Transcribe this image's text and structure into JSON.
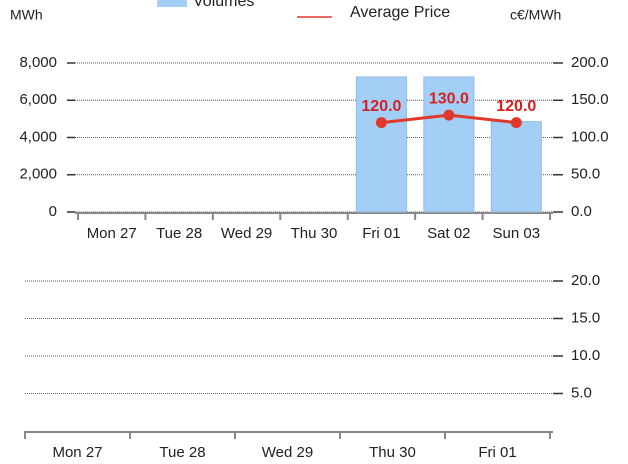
{
  "chart_data": [
    {
      "type": "bar",
      "ylabel": "MWh",
      "y2label": "c€/MWh",
      "categories": [
        "Mon 27",
        "Tue 28",
        "Wed 29",
        "Thu 30",
        "Fri 01",
        "Sat 02",
        "Sun 03"
      ],
      "series": [
        {
          "name": "Volumes",
          "type": "bar",
          "color": "#a3cff7",
          "values": [
            null,
            null,
            null,
            null,
            7250,
            7250,
            4850
          ]
        },
        {
          "name": "Average Price",
          "type": "line",
          "axis": "y2",
          "color": "#e0392b",
          "values": [
            null,
            null,
            null,
            null,
            120,
            130,
            120
          ],
          "value_labels": [
            null,
            null,
            null,
            null,
            "120.0",
            "130.0",
            "120.0"
          ]
        }
      ],
      "ylim": [
        0,
        8000
      ],
      "yticks": [
        0,
        {
          "value": 2000,
          "label": "2,000"
        },
        {
          "value": 4000,
          "label": "4,000"
        },
        {
          "value": 6000,
          "label": "6,000"
        },
        {
          "value": 8000,
          "label": "8,000"
        }
      ],
      "y2lim": [
        0,
        200
      ],
      "y2ticks": [
        {
          "value": 0,
          "label": "0.0"
        },
        {
          "value": 50,
          "label": "50.0"
        },
        {
          "value": 100,
          "label": "100.0"
        },
        {
          "value": 150,
          "label": "150.0"
        },
        {
          "value": 200,
          "label": "200.0"
        }
      ],
      "grid": true,
      "legend": "top"
    },
    {
      "type": "line",
      "categories": [
        "Mon 27",
        "Tue 28",
        "Wed 29",
        "Thu 30",
        "Fri 01"
      ],
      "series": [],
      "y2lim": [
        0,
        20
      ],
      "y2ticks": [
        {
          "value": 5,
          "label": "5.0"
        },
        {
          "value": 10,
          "label": "10.0"
        },
        {
          "value": 15,
          "label": "15.0"
        },
        {
          "value": 20,
          "label": "20.0"
        }
      ],
      "grid": true
    }
  ]
}
